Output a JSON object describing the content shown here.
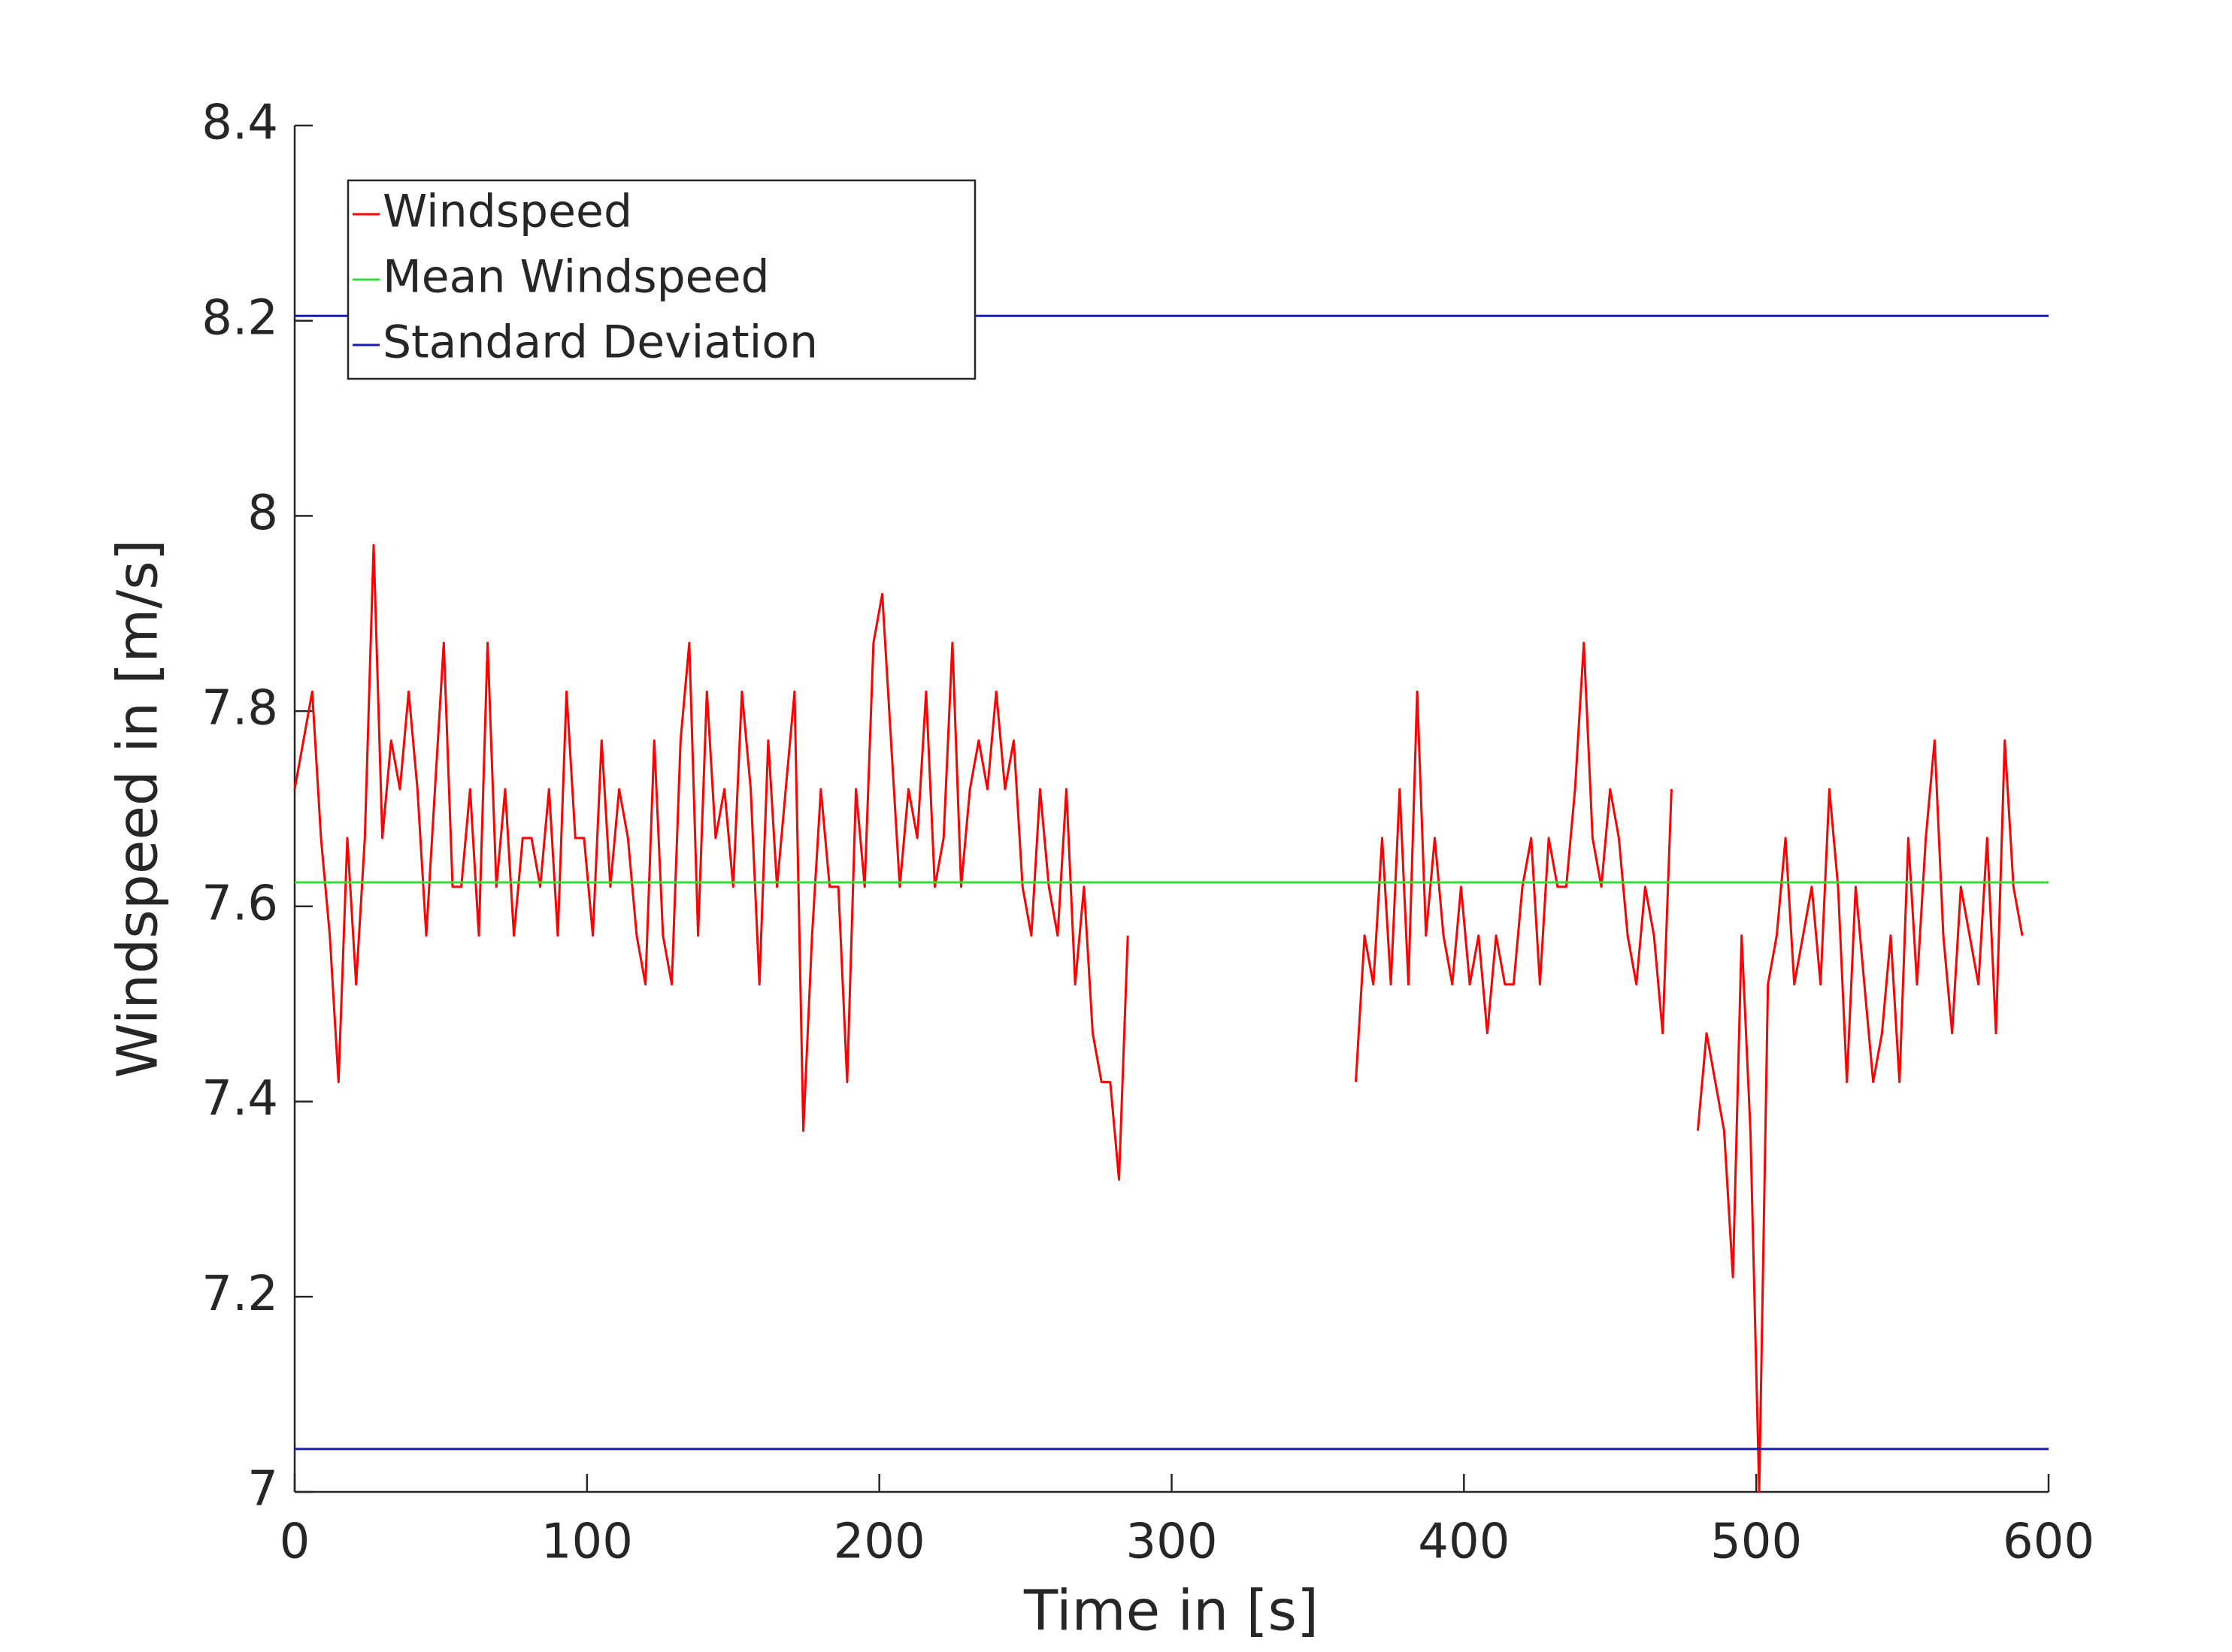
{
  "chart_data": {
    "type": "line",
    "xlabel": "Time in [s]",
    "ylabel": "Windspeed in [m/s]",
    "xlim": [
      0,
      600
    ],
    "xticks": [
      0,
      100,
      200,
      300,
      400,
      500,
      600
    ],
    "ylim": [
      7,
      8.4
    ],
    "yticks": [
      7,
      7.2,
      7.4,
      7.6,
      7.8,
      8,
      8.2,
      8.4
    ],
    "grid": false,
    "legend": "northwest",
    "series": [
      {
        "name": "Windspeed",
        "color": "#ff0000",
        "x": [
          0,
          3,
          6,
          9,
          12,
          15,
          18,
          21,
          24,
          27,
          30,
          33,
          36,
          39,
          42,
          45,
          48,
          51,
          54,
          57,
          60,
          63,
          66,
          69,
          72,
          75,
          78,
          81,
          84,
          87,
          90,
          93,
          96,
          99,
          102,
          105,
          108,
          111,
          114,
          117,
          120,
          123,
          126,
          129,
          132,
          135,
          138,
          141,
          144,
          147,
          150,
          153,
          156,
          159,
          162,
          165,
          168,
          171,
          174,
          177,
          180,
          183,
          186,
          189,
          192,
          195,
          198,
          201,
          204,
          207,
          210,
          213,
          216,
          219,
          222,
          225,
          228,
          231,
          234,
          237,
          240,
          243,
          246,
          249,
          252,
          255,
          258,
          261,
          264,
          267,
          270,
          273,
          276,
          279,
          282,
          285,
          288,
          363,
          366,
          369,
          372,
          375,
          378,
          381,
          384,
          387,
          390,
          393,
          396,
          399,
          402,
          405,
          408,
          411,
          414,
          417,
          420,
          423,
          426,
          429,
          432,
          435,
          438,
          441,
          444,
          447,
          450,
          453,
          456,
          459,
          462,
          465,
          468,
          471,
          474,
          480,
          483,
          486,
          489,
          492,
          495,
          498,
          501,
          504,
          507,
          510,
          513,
          516,
          519,
          522,
          525,
          528,
          531,
          534,
          537,
          540,
          543,
          546,
          549,
          552,
          555,
          558,
          561,
          564,
          567,
          570,
          573,
          576,
          579,
          582,
          585,
          588,
          591
        ],
        "values": [
          7.72,
          7.77,
          7.82,
          7.67,
          7.57,
          7.42,
          7.67,
          7.52,
          7.67,
          7.97,
          7.67,
          7.77,
          7.72,
          7.82,
          7.72,
          7.57,
          7.72,
          7.87,
          7.62,
          7.62,
          7.72,
          7.57,
          7.87,
          7.62,
          7.72,
          7.57,
          7.67,
          7.67,
          7.62,
          7.72,
          7.57,
          7.82,
          7.67,
          7.67,
          7.57,
          7.77,
          7.62,
          7.72,
          7.67,
          7.57,
          7.52,
          7.77,
          7.57,
          7.52,
          7.77,
          7.87,
          7.57,
          7.82,
          7.67,
          7.72,
          7.62,
          7.82,
          7.72,
          7.52,
          7.77,
          7.62,
          7.72,
          7.82,
          7.37,
          7.57,
          7.72,
          7.62,
          7.62,
          7.42,
          7.72,
          7.62,
          7.87,
          7.92,
          7.77,
          7.62,
          7.72,
          7.67,
          7.82,
          7.62,
          7.67,
          7.87,
          7.62,
          7.72,
          7.77,
          7.72,
          7.82,
          7.72,
          7.77,
          7.62,
          7.57,
          7.72,
          7.62,
          7.57,
          7.72,
          7.52,
          7.62,
          7.47,
          7.42,
          7.42,
          7.32,
          7.57,
          null,
          7.42,
          7.57,
          7.52,
          7.67,
          7.52,
          7.72,
          7.52,
          7.82,
          7.57,
          7.67,
          7.57,
          7.52,
          7.62,
          7.52,
          7.57,
          7.47,
          7.57,
          7.52,
          7.52,
          7.62,
          7.67,
          7.52,
          7.67,
          7.62,
          7.62,
          7.72,
          7.87,
          7.67,
          7.62,
          7.72,
          7.67,
          7.57,
          7.52,
          7.62,
          7.57,
          7.47,
          7.72,
          null,
          7.37,
          7.47,
          7.42,
          7.37,
          7.22,
          7.57,
          7.37,
          7.0,
          7.52,
          7.57,
          7.67,
          7.52,
          7.57,
          7.62,
          7.52,
          7.72,
          7.62,
          7.42,
          7.62,
          7.52,
          7.42,
          7.47,
          7.57,
          7.42,
          7.67,
          7.52,
          7.67,
          7.77,
          7.57,
          7.47,
          7.62,
          7.57,
          7.52,
          7.67,
          7.47,
          7.77,
          7.62,
          7.57
        ]
      },
      {
        "name": "Mean Windspeed",
        "color": "#33dd33",
        "x": [
          0,
          600
        ],
        "values": [
          7.6245,
          7.6245
        ]
      },
      {
        "name": "Standard Deviation",
        "color": "#1a1ab8",
        "x": [
          0,
          600,
          null,
          0,
          600
        ],
        "values": [
          8.205,
          8.205,
          null,
          7.044,
          7.044
        ]
      }
    ]
  }
}
